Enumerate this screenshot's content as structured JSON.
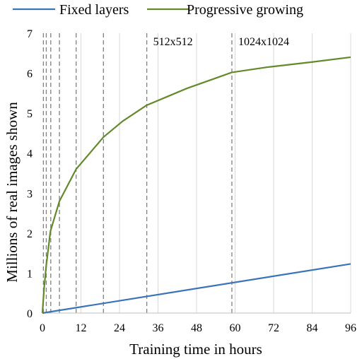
{
  "chart_data": {
    "type": "line",
    "title": "",
    "xlabel": "Training time in hours",
    "ylabel": "Millions of real images shown",
    "xlim": [
      0,
      96
    ],
    "ylim": [
      0,
      7
    ],
    "x_ticks": [
      0,
      12,
      24,
      36,
      48,
      60,
      72,
      84,
      96
    ],
    "y_ticks": [
      0,
      1,
      2,
      3,
      4,
      5,
      6,
      7
    ],
    "grid": "vertical",
    "legend_position": "top",
    "series": [
      {
        "name": "Fixed layers",
        "color": "#3a73b8",
        "x": [
          0,
          96
        ],
        "y": [
          0,
          1.23
        ]
      },
      {
        "name": "Progressive growing",
        "color": "#628a2a",
        "x": [
          0,
          0.5,
          1.2,
          2.5,
          5.3,
          10.5,
          19,
          25,
          32.5,
          45,
          59,
          70,
          84,
          96
        ],
        "y": [
          0,
          0.6,
          1.2,
          2.05,
          2.8,
          3.6,
          4.4,
          4.8,
          5.2,
          5.62,
          6.02,
          6.15,
          6.28,
          6.4
        ]
      }
    ],
    "stage_markers": [
      0.3,
      1.2,
      2.6,
      5.3,
      10.5,
      19,
      32.5,
      59
    ],
    "annotations": [
      {
        "text": "512x512",
        "x": 32.5
      },
      {
        "text": "1024x1024",
        "x": 59
      }
    ]
  }
}
